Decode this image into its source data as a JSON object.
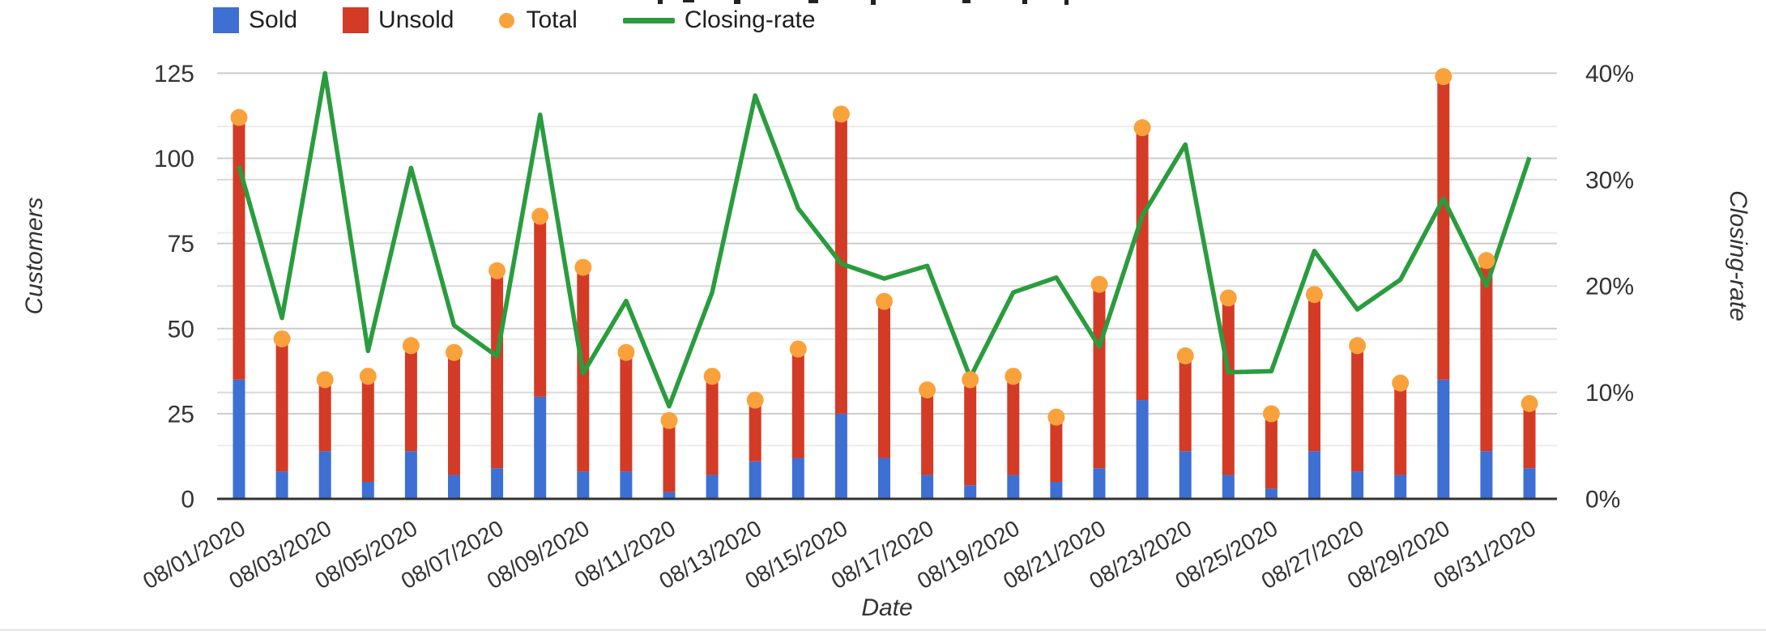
{
  "legend": {
    "items": [
      {
        "label": "Sold",
        "swatch": "square",
        "color": "#3E6FD3"
      },
      {
        "label": "Unsold",
        "swatch": "square",
        "color": "#D33B26"
      },
      {
        "label": "Total",
        "swatch": "dot",
        "color": "#F9A23C"
      },
      {
        "label": "Closing-rate",
        "swatch": "line",
        "color": "#2A9C3E"
      }
    ]
  },
  "colors": {
    "sold": "#3E6FD3",
    "unsold": "#D33B26",
    "total_dot": "#F9A23C",
    "closing_rate": "#2A9C3E",
    "axis_text": "#333333",
    "grid_major": "#cccccc",
    "grid_secondary": "#d9d9d9",
    "grid_minor": "#ececec",
    "baseline": "#333333"
  },
  "chart_data": {
    "type": "combo",
    "categories": [
      "08/01/2020",
      "08/02/2020",
      "08/03/2020",
      "08/04/2020",
      "08/05/2020",
      "08/06/2020",
      "08/07/2020",
      "08/08/2020",
      "08/09/2020",
      "08/10/2020",
      "08/11/2020",
      "08/12/2020",
      "08/13/2020",
      "08/14/2020",
      "08/15/2020",
      "08/16/2020",
      "08/17/2020",
      "08/18/2020",
      "08/19/2020",
      "08/20/2020",
      "08/21/2020",
      "08/22/2020",
      "08/23/2020",
      "08/24/2020",
      "08/25/2020",
      "08/26/2020",
      "08/27/2020",
      "08/28/2020",
      "08/29/2020",
      "08/30/2020",
      "08/31/2020"
    ],
    "x_labeled_every": 2,
    "series": [
      {
        "name": "Sold",
        "type": "bar-stack",
        "axis": "left",
        "color": "#3E6FD3",
        "values": [
          35,
          8,
          14,
          5,
          14,
          7,
          9,
          30,
          8,
          8,
          2,
          7,
          11,
          12,
          25,
          12,
          7,
          4,
          7,
          5,
          9,
          29,
          14,
          7,
          3,
          14,
          8,
          7,
          35,
          14,
          9
        ]
      },
      {
        "name": "Unsold",
        "type": "bar-stack",
        "axis": "left",
        "color": "#D33B26",
        "values": [
          77,
          39,
          21,
          31,
          31,
          36,
          58,
          53,
          60,
          35,
          21,
          29,
          18,
          32,
          88,
          46,
          25,
          31,
          29,
          19,
          54,
          80,
          28,
          52,
          22,
          46,
          37,
          27,
          89,
          56,
          19
        ]
      },
      {
        "name": "Total",
        "type": "scatter",
        "axis": "left",
        "color": "#F9A23C",
        "values": [
          112,
          47,
          35,
          36,
          45,
          43,
          67,
          83,
          68,
          43,
          23,
          36,
          29,
          44,
          113,
          58,
          32,
          35,
          36,
          24,
          63,
          109,
          42,
          59,
          25,
          60,
          45,
          34,
          124,
          70,
          28
        ]
      },
      {
        "name": "Closing-rate",
        "type": "line",
        "axis": "right",
        "color": "#2A9C3E",
        "values": [
          31.3,
          17.0,
          40.0,
          13.9,
          31.1,
          16.3,
          13.4,
          36.1,
          11.8,
          18.6,
          8.7,
          19.4,
          37.9,
          27.3,
          22.1,
          20.7,
          21.9,
          11.4,
          19.4,
          20.8,
          14.3,
          26.6,
          33.3,
          11.9,
          12.0,
          23.3,
          17.8,
          20.6,
          28.2,
          20.0,
          32.1
        ]
      }
    ],
    "xlabel": "Date",
    "ylabel": "Customers",
    "y2label": "Closing-rate",
    "ylim": [
      0,
      125
    ],
    "y2lim": [
      0,
      40
    ],
    "y_tick_labels": [
      "0",
      "25",
      "50",
      "75",
      "100",
      "125"
    ],
    "y_tick_values": [
      0,
      25,
      50,
      75,
      100,
      125
    ],
    "y2_tick_labels": [
      "0%",
      "10%",
      "20%",
      "30%",
      "40%"
    ],
    "y2_tick_values": [
      0,
      10,
      20,
      30,
      40
    ],
    "y2_minor_tick_values": [
      5,
      15,
      25,
      35
    ],
    "grid": true,
    "legend_position": "top"
  }
}
